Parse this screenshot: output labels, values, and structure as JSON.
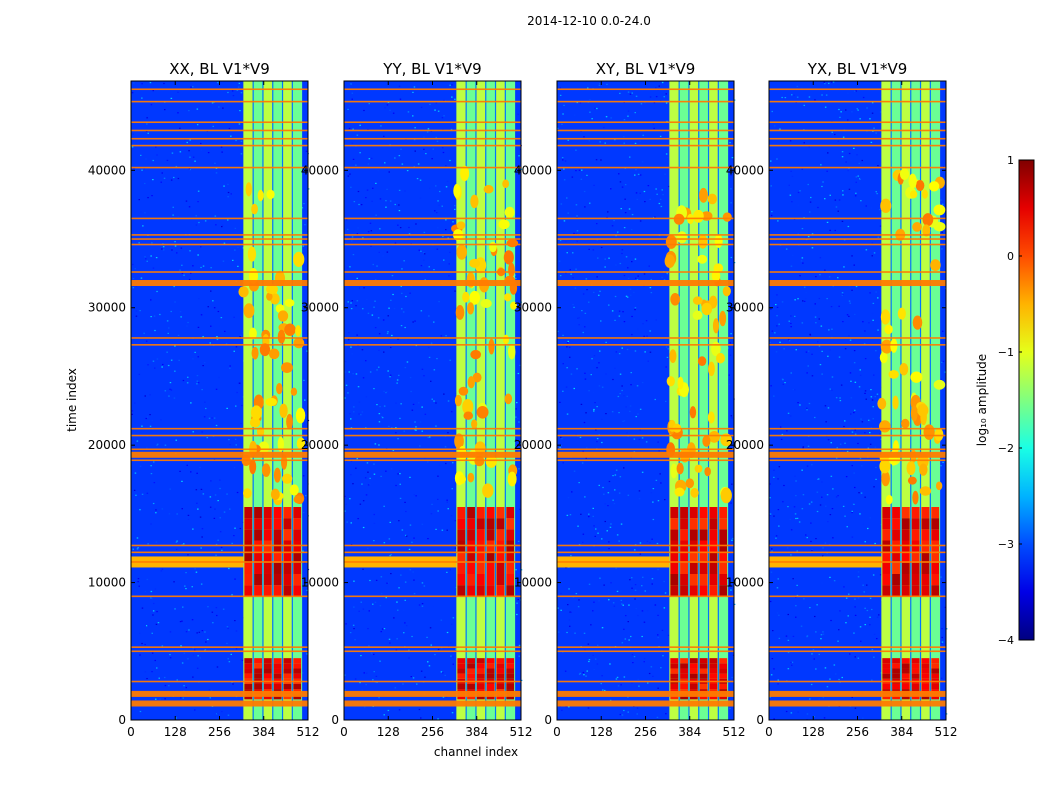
{
  "figure": {
    "suptitle": "2014-12-10 0.0-24.0",
    "xlabel": "channel index",
    "ylabel": "time index",
    "colorbar_label": "log₁₀ amplitude"
  },
  "chart_data": {
    "type": "heatmap",
    "x_ticks": [
      "0",
      "128",
      "256",
      "384",
      "512"
    ],
    "y_ticks": [
      "0",
      "10000",
      "20000",
      "30000",
      "40000"
    ],
    "xlim": [
      0,
      512
    ],
    "ylim": [
      0,
      46500
    ],
    "colorbar": {
      "range": [
        -4,
        1
      ],
      "ticks": [
        "1",
        "0",
        "−1",
        "−2",
        "−3",
        "−4"
      ],
      "colormap": "jet"
    },
    "panels": [
      {
        "title": "XX, BL V1*V9"
      },
      {
        "title": "YY, BL V1*V9"
      },
      {
        "title": "XY, BL V1*V9"
      },
      {
        "title": "YX, BL V1*V9"
      }
    ],
    "flagged_time_rows": [
      1200,
      1900,
      2800,
      5000,
      5300,
      9000,
      11500,
      12200,
      12700,
      18900,
      19300,
      19700,
      20700,
      21200,
      27300,
      27800,
      31800,
      32600,
      34600,
      35000,
      35300,
      36500,
      40200,
      41800,
      42300,
      42900,
      43500,
      45000,
      45900
    ],
    "bright_channel_range": [
      325,
      495
    ],
    "strong_rfi_time_ranges": [
      [
        1500,
        4500
      ],
      [
        9000,
        15500
      ]
    ]
  }
}
